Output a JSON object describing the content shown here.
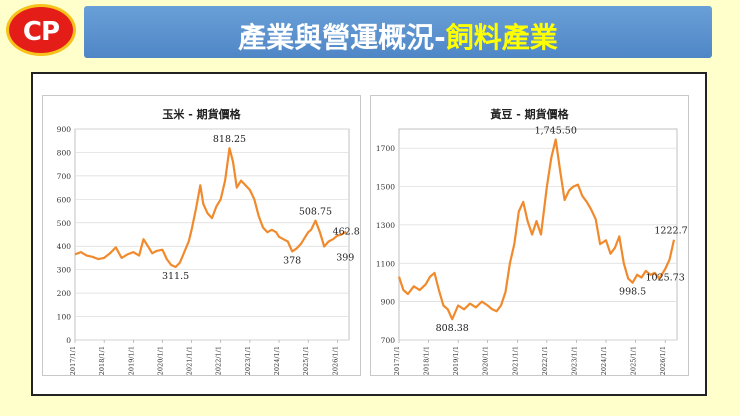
{
  "header": {
    "logo_text": "CP",
    "title_main": "產業與營運概況-",
    "title_highlight": "飼料產業",
    "accent_color": "#ffff00",
    "banner_color": "#5a8fcf"
  },
  "chart_data": [
    {
      "type": "line",
      "title": "玉米 - 期貨價格",
      "line_color": "#f08a2c",
      "ylim": [
        0,
        900
      ],
      "yticks": [
        0,
        100,
        200,
        300,
        400,
        500,
        600,
        700,
        800,
        900
      ],
      "xticks": [
        "2017/1/1",
        "2018/1/1",
        "2019/1/1",
        "2020/1/1",
        "2021/1/1",
        "2022/1/1",
        "2023/1/1",
        "2024/1/1",
        "2025/1/1",
        "2026/1/1"
      ],
      "xlim": [
        2017.0,
        2026.4
      ],
      "grid": true,
      "x": [
        2017.0,
        2017.2,
        2017.4,
        2017.6,
        2017.8,
        2018.0,
        2018.2,
        2018.4,
        2018.6,
        2018.8,
        2019.0,
        2019.2,
        2019.35,
        2019.5,
        2019.65,
        2019.8,
        2020.0,
        2020.15,
        2020.3,
        2020.45,
        2020.6,
        2020.75,
        2020.9,
        2021.0,
        2021.15,
        2021.3,
        2021.4,
        2021.55,
        2021.7,
        2021.85,
        2022.0,
        2022.15,
        2022.3,
        2022.42,
        2022.55,
        2022.7,
        2022.85,
        2023.0,
        2023.15,
        2023.3,
        2023.45,
        2023.6,
        2023.75,
        2023.9,
        2024.0,
        2024.15,
        2024.3,
        2024.45,
        2024.6,
        2024.75,
        2024.9,
        2025.0,
        2025.1,
        2025.25,
        2025.4,
        2025.55,
        2025.7,
        2025.85,
        2026.0,
        2026.15,
        2026.3
      ],
      "y": [
        365,
        375,
        360,
        355,
        345,
        350,
        370,
        395,
        350,
        365,
        375,
        360,
        430,
        400,
        370,
        380,
        385,
        345,
        320,
        311.5,
        330,
        375,
        420,
        470,
        560,
        660,
        580,
        540,
        520,
        570,
        600,
        680,
        818.25,
        760,
        650,
        680,
        660,
        640,
        600,
        530,
        480,
        460,
        470,
        460,
        440,
        430,
        420,
        378,
        390,
        410,
        440,
        460,
        470,
        508.75,
        460,
        399,
        420,
        430,
        445,
        450,
        462.88
      ],
      "annotations": [
        {
          "label": "818.25",
          "x": 2022.3,
          "y": 818.25,
          "pos": "above"
        },
        {
          "label": "311.5",
          "x": 2020.45,
          "y": 311.5,
          "pos": "below"
        },
        {
          "label": "378",
          "x": 2024.45,
          "y": 378,
          "pos": "below"
        },
        {
          "label": "508.75",
          "x": 2025.25,
          "y": 508.75,
          "pos": "above"
        },
        {
          "label": "462.88",
          "x": 2025.7,
          "y": 462.88,
          "pos": "right"
        },
        {
          "label": "399",
          "x": 2025.55,
          "y": 399,
          "pos": "below-right"
        }
      ]
    },
    {
      "type": "line",
      "title": "黃豆 - 期貨價格",
      "line_color": "#f08a2c",
      "ylim": [
        700,
        1800
      ],
      "yticks": [
        700,
        900,
        1100,
        1300,
        1500,
        1700
      ],
      "xticks": [
        "2017/1/1",
        "2018/1/1",
        "2019/1/1",
        "2020/1/1",
        "2021/1/1",
        "2022/1/1",
        "2023/1/1",
        "2024/1/1",
        "2025/1/1",
        "2026/1/1"
      ],
      "xlim": [
        2017.0,
        2026.4
      ],
      "grid": true,
      "x": [
        2017.0,
        2017.15,
        2017.3,
        2017.5,
        2017.7,
        2017.9,
        2018.05,
        2018.2,
        2018.35,
        2018.5,
        2018.65,
        2018.8,
        2019.0,
        2019.2,
        2019.4,
        2019.6,
        2019.8,
        2020.0,
        2020.15,
        2020.3,
        2020.45,
        2020.6,
        2020.75,
        2020.9,
        2021.05,
        2021.2,
        2021.35,
        2021.5,
        2021.65,
        2021.8,
        2022.0,
        2022.15,
        2022.3,
        2022.45,
        2022.6,
        2022.75,
        2022.9,
        2023.05,
        2023.2,
        2023.35,
        2023.5,
        2023.65,
        2023.8,
        2024.0,
        2024.15,
        2024.3,
        2024.45,
        2024.6,
        2024.75,
        2024.9,
        2025.05,
        2025.2,
        2025.35,
        2025.5,
        2025.65,
        2025.8,
        2026.0,
        2026.15,
        2026.3
      ],
      "y": [
        1030,
        960,
        940,
        980,
        960,
        990,
        1030,
        1050,
        960,
        880,
        860,
        808.38,
        880,
        860,
        890,
        870,
        900,
        880,
        860,
        850,
        880,
        950,
        1100,
        1200,
        1370,
        1420,
        1320,
        1250,
        1320,
        1250,
        1500,
        1650,
        1745.5,
        1580,
        1430,
        1480,
        1500,
        1510,
        1450,
        1420,
        1380,
        1330,
        1200,
        1220,
        1150,
        1180,
        1240,
        1100,
        1020,
        998.5,
        1040,
        1025.73,
        1060,
        1040,
        1050,
        1020,
        1070,
        1120,
        1222.75
      ],
      "annotations": [
        {
          "label": "1,745.50",
          "x": 2022.3,
          "y": 1745.5,
          "pos": "above"
        },
        {
          "label": "808.38",
          "x": 2018.8,
          "y": 808.38,
          "pos": "below"
        },
        {
          "label": "998.5",
          "x": 2024.9,
          "y": 998.5,
          "pos": "below"
        },
        {
          "label": "1025.73",
          "x": 2025.2,
          "y": 1025.73,
          "pos": "right"
        },
        {
          "label": "1222.75",
          "x": 2026.3,
          "y": 1222.75,
          "pos": "above"
        }
      ]
    }
  ]
}
